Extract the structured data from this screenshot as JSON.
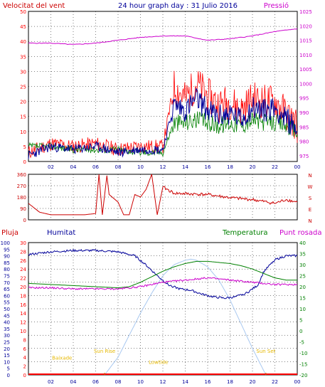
{
  "header": {
    "wind_label": "Velocitat del vent",
    "title": "24 hour graph day : 31 Julio 2016",
    "pressure_label": "Pressió"
  },
  "legend2": {
    "pluja": "Pluja",
    "humitat": "Humitat",
    "temperatura": "Temperatura",
    "punt_rosada": "Punt rosada"
  },
  "colors": {
    "wind_speed": "#ff0000",
    "wind_gust_line": "#000099",
    "wind_avg": "#008000",
    "pressure": "#cc00cc",
    "direction": "#cc0000",
    "humidity": "#000099",
    "temperature": "#008000",
    "dewpoint": "#cc00cc",
    "solar": "#a8c8f0",
    "rain": "#ff0000",
    "frame": "#000000",
    "grid": "#000000",
    "annot": "#ffcc00"
  },
  "chart_data": [
    {
      "type": "line",
      "name": "wind_and_pressure",
      "x_ticks": [
        "02",
        "04",
        "06",
        "08",
        "10",
        "12",
        "14",
        "16",
        "18",
        "20",
        "22",
        "00"
      ],
      "left_axis": {
        "ticks": [
          0,
          5,
          10,
          15,
          20,
          25,
          30,
          35,
          40,
          45,
          50
        ],
        "ylim": [
          0,
          50
        ]
      },
      "right_axis": {
        "ticks": [
          975,
          980,
          985,
          990,
          995,
          1000,
          1005,
          1010,
          1015,
          1020,
          1025
        ],
        "ylim": [
          973,
          1025
        ]
      },
      "series": [
        {
          "name": "Velocitat del vent",
          "x": [
            0,
            2,
            4,
            6,
            8,
            10,
            12,
            13,
            14,
            15,
            16,
            17,
            18,
            19,
            20,
            21,
            22,
            23,
            24
          ],
          "y": [
            3,
            6,
            5,
            6,
            4,
            5,
            5,
            25,
            21,
            26,
            22,
            19,
            20,
            17,
            21,
            20,
            20,
            16,
            12
          ]
        },
        {
          "x": [
            0,
            2,
            4,
            6,
            8,
            10,
            12,
            13,
            14,
            15,
            16,
            17,
            18,
            19,
            20,
            21,
            22,
            23,
            24
          ],
          "y": [
            2,
            5,
            4,
            5,
            3,
            4,
            4,
            19,
            17,
            21,
            17,
            15,
            16,
            14,
            18,
            17,
            18,
            14,
            11
          ]
        },
        {
          "x": [
            0,
            2,
            4,
            6,
            8,
            10,
            12,
            13,
            14,
            15,
            16,
            17,
            18,
            19,
            20,
            21,
            22,
            23,
            24
          ],
          "y": [
            5,
            5,
            4,
            4,
            4,
            3,
            3,
            13,
            13,
            14,
            13,
            12,
            13,
            12,
            14,
            13,
            13,
            12,
            10
          ]
        },
        {
          "name": "Pressió",
          "x": [
            0,
            2,
            4,
            6,
            8,
            10,
            12,
            14,
            16,
            18,
            20,
            22,
            24
          ],
          "y": [
            1014,
            1014,
            1013.5,
            1014,
            1015,
            1016,
            1016.5,
            1016.5,
            1015,
            1015.5,
            1016.5,
            1018,
            1019
          ]
        }
      ]
    },
    {
      "type": "line",
      "name": "wind_direction",
      "x_ticks": [
        "02",
        "04",
        "06",
        "08",
        "10",
        "12",
        "14",
        "16",
        "18",
        "20",
        "22",
        "00"
      ],
      "y_ticks": [
        0,
        90,
        180,
        270,
        360
      ],
      "ylim": [
        0,
        360
      ],
      "compass": [
        "N",
        "W",
        "S",
        "E",
        "N"
      ],
      "series": [
        {
          "x": [
            0,
            1,
            2,
            3,
            5,
            6,
            6.3,
            6.6,
            7,
            7.2,
            8,
            8.5,
            9,
            9.5,
            10,
            10.5,
            11,
            11.5,
            12,
            13,
            16,
            18,
            20,
            22,
            23,
            24
          ],
          "y": [
            130,
            60,
            40,
            40,
            40,
            50,
            360,
            40,
            350,
            200,
            140,
            40,
            40,
            200,
            180,
            240,
            360,
            40,
            260,
            210,
            200,
            175,
            160,
            130,
            160,
            140
          ]
        }
      ]
    },
    {
      "type": "line",
      "name": "rain_humidity_temperature",
      "x_ticks": [
        "02",
        "04",
        "06",
        "08",
        "10",
        "12",
        "14",
        "16",
        "18",
        "20",
        "22",
        "00"
      ],
      "axes": {
        "rain": {
          "ticks": [
            0,
            5,
            10,
            15,
            20,
            25,
            30,
            35,
            40,
            45,
            50,
            55,
            60,
            65,
            70,
            75,
            80,
            85,
            90,
            95,
            100
          ]
        },
        "humidity": {
          "ticks": [
            0,
            2,
            4,
            6,
            8,
            10,
            12,
            14,
            16,
            18,
            20,
            22,
            24,
            26,
            28,
            30
          ]
        },
        "temperature": {
          "ticks": [
            -20,
            -15,
            -10,
            -5,
            0,
            5,
            10,
            15,
            20,
            25,
            30,
            35,
            40
          ]
        }
      },
      "series": [
        {
          "name": "Humitat",
          "x": [
            0,
            2,
            4,
            6,
            8,
            9.5,
            10.5,
            11.5,
            12.5,
            13.5,
            14.5,
            15.5,
            16.5,
            17.5,
            18.5,
            19.5,
            20.5,
            21,
            22,
            23,
            24
          ],
          "y": [
            91,
            93,
            94,
            94,
            93,
            90,
            83,
            75,
            68,
            65,
            64,
            61,
            59,
            58,
            59,
            62,
            68,
            78,
            87,
            90,
            90
          ]
        },
        {
          "name": "Temperatura",
          "x": [
            0,
            2,
            4,
            6,
            8,
            9,
            10,
            11,
            12,
            13,
            14,
            15,
            16,
            17,
            18,
            19,
            20,
            21,
            22,
            23,
            24
          ],
          "y": [
            21.5,
            21,
            20.5,
            20,
            19.5,
            20,
            22,
            24.5,
            27,
            29,
            30.5,
            31.5,
            31.5,
            31,
            30.5,
            29.5,
            28,
            26,
            24,
            23,
            23
          ]
        },
        {
          "name": "Punt rosada",
          "x": [
            0,
            2,
            4,
            6,
            8,
            10,
            12,
            14,
            16,
            18,
            20,
            22,
            24
          ],
          "y": [
            19.5,
            19.5,
            19,
            19,
            19,
            20,
            22,
            23,
            24,
            23,
            22,
            21,
            21
          ]
        },
        {
          "x": [
            6.8,
            8,
            9,
            10,
            11,
            12,
            13,
            14,
            14.5,
            15,
            16,
            17,
            18,
            19,
            20,
            21,
            21.2
          ],
          "y": [
            -20,
            -12,
            -2,
            8,
            17,
            25,
            30,
            32,
            32.5,
            32,
            29,
            23,
            14,
            3,
            -8,
            -18,
            -20
          ]
        },
        {
          "name": "Pluja",
          "x": [
            0,
            24
          ],
          "y": [
            0,
            0
          ]
        }
      ],
      "annotations": [
        {
          "text": "Baixade",
          "x": 3,
          "y": -13
        },
        {
          "text": "Sun Rise",
          "x": 6.8,
          "y": -10
        },
        {
          "text": "Lowtide",
          "x": 11.6,
          "y": -15
        },
        {
          "text": "Sun Set",
          "x": 21.2,
          "y": -10
        }
      ]
    }
  ]
}
